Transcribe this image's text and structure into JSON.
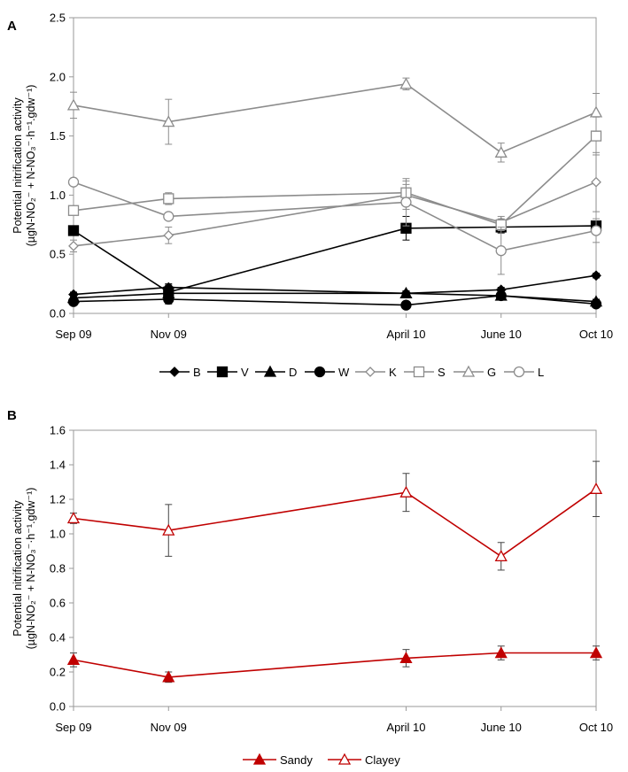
{
  "chart_data": [
    {
      "type": "line",
      "panel": "A",
      "ylabel_line1": "Potential nitrification activity",
      "ylabel_line2": "(µgN-NO₂⁻ + N-NO₃⁻·h⁻¹.gdw⁻¹)",
      "xlabel": "",
      "ylim": [
        0,
        2.5
      ],
      "yticks": [
        0,
        0.5,
        1.0,
        1.5,
        2.0,
        2.5
      ],
      "ytick_labels": [
        "0.0",
        "0.5",
        "1.0",
        "1.5",
        "2.0",
        "2.5"
      ],
      "x_months": [
        0,
        2,
        7,
        9,
        11
      ],
      "x_labels": [
        "Sep 09",
        "Nov 09",
        "April 10",
        "June 10",
        "Oct 10"
      ],
      "legend_position": "bottom",
      "series": [
        {
          "name": "B",
          "color": "#000000",
          "marker": "diamond",
          "filled": true,
          "values": [
            0.16,
            0.22,
            0.17,
            0.2,
            0.32
          ],
          "errors": [
            0.02,
            0.02,
            0.02,
            0.02,
            0.02
          ]
        },
        {
          "name": "V",
          "color": "#000000",
          "marker": "square",
          "filled": true,
          "values": [
            0.7,
            0.18,
            0.72,
            0.73,
            0.74
          ],
          "errors": [
            0.04,
            0.03,
            0.1,
            0.05,
            0.03
          ]
        },
        {
          "name": "D",
          "color": "#000000",
          "marker": "triangle",
          "filled": true,
          "values": [
            0.13,
            0.17,
            0.17,
            0.15,
            0.1
          ],
          "errors": [
            0.02,
            0.08,
            0.02,
            0.02,
            0.02
          ]
        },
        {
          "name": "W",
          "color": "#000000",
          "marker": "circle",
          "filled": true,
          "values": [
            0.1,
            0.12,
            0.07,
            0.15,
            0.08
          ],
          "errors": [
            0.02,
            0.04,
            0.02,
            0.02,
            0.02
          ]
        },
        {
          "name": "K",
          "color": "#8c8c8c",
          "marker": "diamond",
          "filled": false,
          "values": [
            0.57,
            0.66,
            1.0,
            0.77,
            1.11
          ],
          "errors": [
            0.05,
            0.07,
            0.12,
            0.05,
            0.25
          ]
        },
        {
          "name": "S",
          "color": "#8c8c8c",
          "marker": "square",
          "filled": false,
          "values": [
            0.87,
            0.97,
            1.02,
            0.75,
            1.5
          ],
          "errors": [
            0.04,
            0.05,
            0.07,
            0.05,
            0.16
          ]
        },
        {
          "name": "G",
          "color": "#8c8c8c",
          "marker": "triangle",
          "filled": false,
          "values": [
            1.76,
            1.62,
            1.94,
            1.36,
            1.7
          ],
          "errors": [
            0.11,
            0.19,
            0.05,
            0.08,
            0.16
          ]
        },
        {
          "name": "L",
          "color": "#8c8c8c",
          "marker": "circle",
          "filled": false,
          "values": [
            1.11,
            0.82,
            0.94,
            0.53,
            0.7
          ],
          "errors": [
            0.03,
            0.03,
            0.2,
            0.2,
            0.1
          ]
        }
      ]
    },
    {
      "type": "line",
      "panel": "B",
      "ylabel_line1": "Potential nitrification activity",
      "ylabel_line2": "(µgN-NO₂⁻ + N-NO₃⁻·h⁻¹.gdw⁻¹)",
      "xlabel": "",
      "ylim": [
        0,
        1.6
      ],
      "yticks": [
        0,
        0.2,
        0.4,
        0.6,
        0.8,
        1.0,
        1.2,
        1.4,
        1.6
      ],
      "ytick_labels": [
        "0.0",
        "0.2",
        "0.4",
        "0.6",
        "0.8",
        "1.0",
        "1.2",
        "1.4",
        "1.6"
      ],
      "x_months": [
        0,
        2,
        7,
        9,
        11
      ],
      "x_labels": [
        "Sep 09",
        "Nov 09",
        "April 10",
        "June 10",
        "Oct 10"
      ],
      "legend_position": "bottom",
      "series": [
        {
          "name": "Sandy",
          "color": "#c00000",
          "marker": "triangle",
          "filled": true,
          "values": [
            0.27,
            0.17,
            0.28,
            0.31,
            0.31
          ],
          "errors": [
            0.04,
            0.03,
            0.05,
            0.04,
            0.04
          ]
        },
        {
          "name": "Clayey",
          "color": "#c00000",
          "marker": "triangle",
          "filled": false,
          "values": [
            1.09,
            1.02,
            1.24,
            0.87,
            1.26
          ],
          "errors": [
            0.03,
            0.15,
            0.11,
            0.08,
            0.16
          ]
        }
      ]
    }
  ]
}
